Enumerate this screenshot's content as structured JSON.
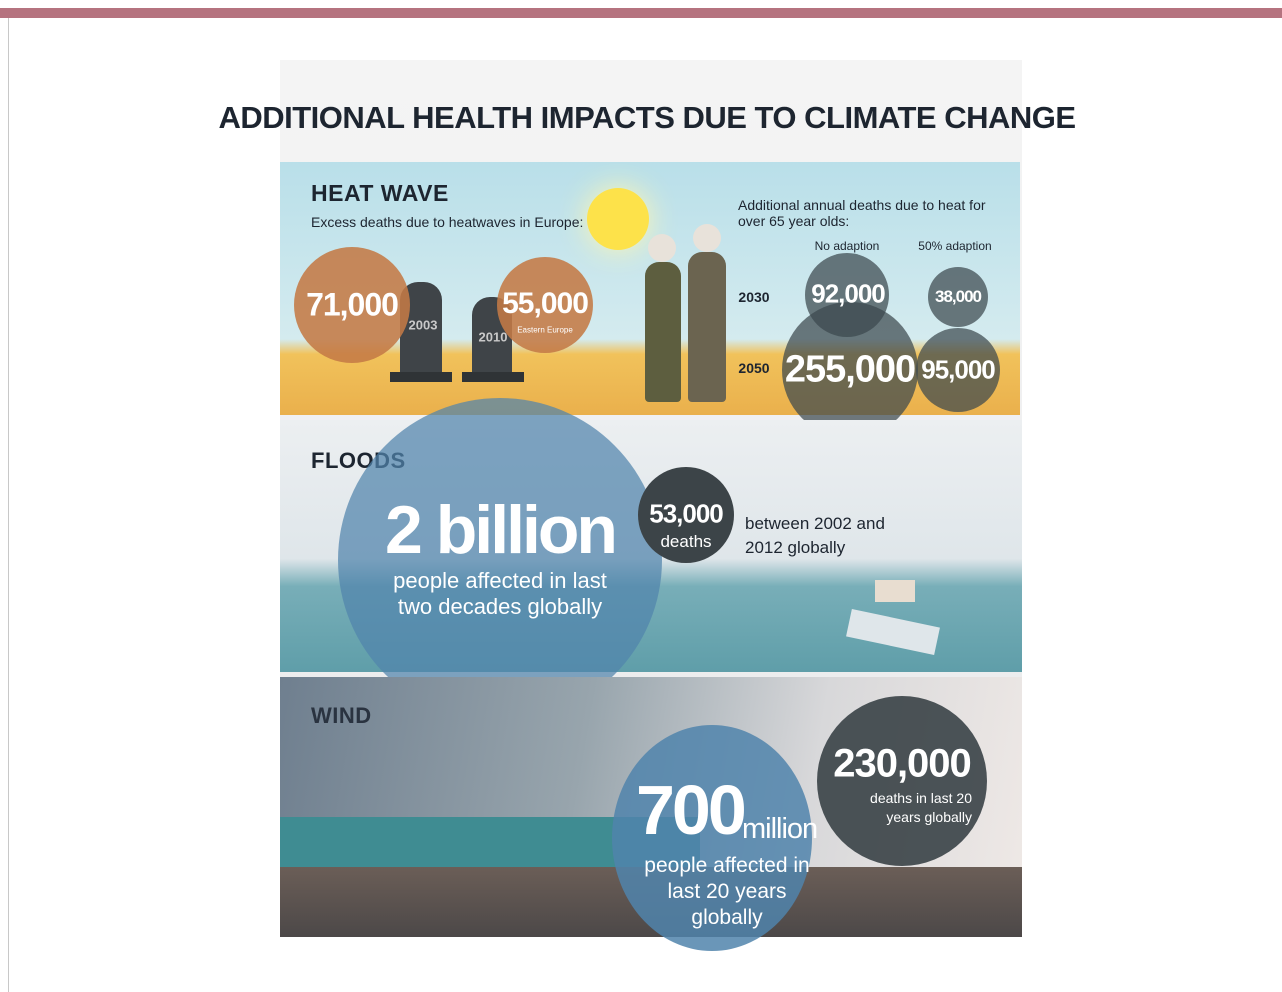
{
  "title": "ADDITIONAL HEALTH IMPACTS DUE TO CLIMATE CHANGE",
  "heat_wave": {
    "heading": "HEAT WAVE",
    "subtitle": "Excess deaths due to heatwaves in Europe:",
    "europe": [
      {
        "value": "71,000",
        "year": "2003"
      },
      {
        "value": "55,000",
        "year": "2010",
        "note": "Eastern Europe"
      }
    ],
    "elderly": {
      "heading": "Additional annual deaths due to heat for over 65 year olds:",
      "columns": [
        "No adaption",
        "50% adaption"
      ],
      "rows": [
        {
          "year": "2030",
          "values": [
            "92,000",
            "38,000"
          ]
        },
        {
          "year": "2050",
          "values": [
            "255,000",
            "95,000"
          ]
        }
      ]
    }
  },
  "floods": {
    "heading": "FLOODS",
    "affected": {
      "value": "2 billion",
      "text": "people affected in last two decades globally"
    },
    "deaths": {
      "value": "53,000",
      "unit": "deaths",
      "text": "between 2002 and 2012 globally"
    }
  },
  "wind": {
    "heading": "WIND",
    "affected": {
      "value": "700",
      "unit": "million",
      "text": "people affected in last 20 years globally"
    },
    "deaths": {
      "value": "230,000",
      "text": "deaths in last 20 years globally"
    }
  }
}
